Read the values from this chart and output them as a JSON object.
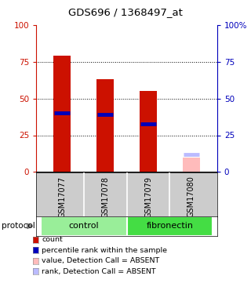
{
  "title": "GDS696 / 1368497_at",
  "samples": [
    "GSM17077",
    "GSM17078",
    "GSM17079",
    "GSM17080"
  ],
  "red_bars": [
    79,
    63,
    55,
    0
  ],
  "blue_markers": [
    40,
    39,
    33,
    0
  ],
  "pink_bars": [
    0,
    0,
    0,
    10
  ],
  "lightblue_markers": [
    0,
    0,
    0,
    12
  ],
  "detection_absent": [
    false,
    false,
    false,
    true
  ],
  "protocols": [
    {
      "label": "control",
      "samples": [
        0,
        1
      ],
      "color": "#99ee99"
    },
    {
      "label": "fibronectin",
      "samples": [
        2,
        3
      ],
      "color": "#44dd44"
    }
  ],
  "ylim": [
    0,
    100
  ],
  "yticks": [
    0,
    25,
    50,
    75,
    100
  ],
  "bar_width": 0.4,
  "red_color": "#cc1100",
  "blue_color": "#0000bb",
  "pink_color": "#ffbbbb",
  "lightblue_color": "#bbbbff",
  "sample_bg_color": "#cccccc",
  "plot_bg": "#ffffff",
  "legend_items": [
    {
      "color": "#cc1100",
      "label": "count"
    },
    {
      "color": "#0000bb",
      "label": "percentile rank within the sample"
    },
    {
      "color": "#ffbbbb",
      "label": "value, Detection Call = ABSENT"
    },
    {
      "color": "#bbbbff",
      "label": "rank, Detection Call = ABSENT"
    }
  ]
}
